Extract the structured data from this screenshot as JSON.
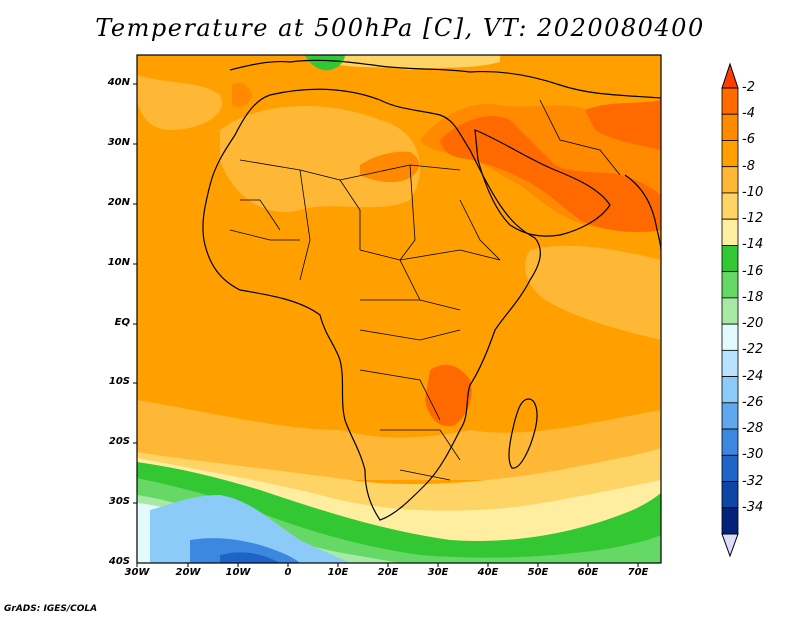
{
  "title": "Temperature at 500hPa [C], VT: 2020080400",
  "credit": "GrADS: IGES/COLA",
  "map": {
    "lat_labels": [
      "40N",
      "30N",
      "20N",
      "10N",
      "EQ",
      "10S",
      "20S",
      "30S",
      "40S"
    ],
    "lon_labels": [
      "30W",
      "20W",
      "10W",
      "0",
      "10E",
      "20E",
      "30E",
      "40E",
      "50E",
      "60E",
      "70E"
    ]
  },
  "colorbar": {
    "labels": [
      "-2",
      "-4",
      "-6",
      "-8",
      "-10",
      "-12",
      "-14",
      "-16",
      "-18",
      "-20",
      "-22",
      "-24",
      "-26",
      "-28",
      "-30",
      "-32",
      "-34"
    ],
    "colors": [
      "#ff6a00",
      "#ff8a00",
      "#ffa000",
      "#ffb835",
      "#ffd466",
      "#ffeea0",
      "#33c833",
      "#66d866",
      "#a6eaa6",
      "#e3fbff",
      "#b8e2ff",
      "#8ccaf7",
      "#5fa8ee",
      "#3c88e0",
      "#1e64c8",
      "#0e46a6",
      "#04227a"
    ],
    "top_color": "#ff3c00",
    "bottom_color": "#dcdcff"
  },
  "colors": {
    "warm_red": "#ff5a1e",
    "orange_dark": "#ff8a00",
    "orange": "#ffa000",
    "orange_light": "#ffb835",
    "yellow": "#ffd466",
    "pale_yellow": "#ffeea0",
    "green": "#33c833",
    "green_light": "#66d866",
    "mint": "#a6eaa6",
    "cyan_pale": "#e3fbff",
    "blue_light": "#8ccaf7",
    "blue": "#3c88e0",
    "blue_dark": "#1e64c8"
  }
}
